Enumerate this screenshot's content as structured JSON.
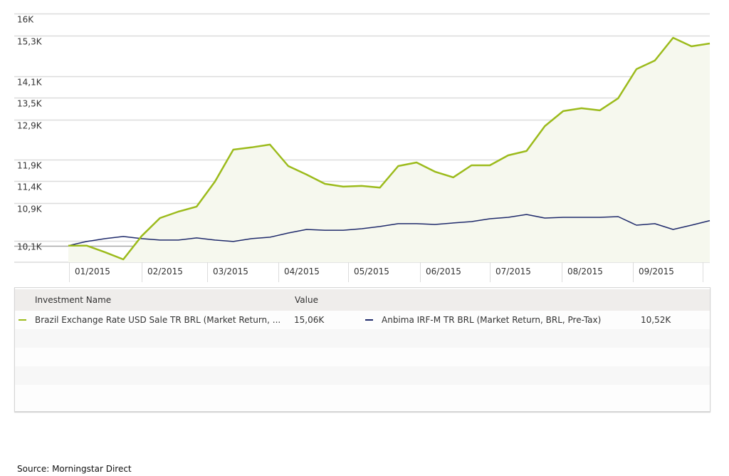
{
  "chart_data": {
    "type": "line",
    "title": "",
    "xlabel": "",
    "ylabel": "",
    "yscale": "log",
    "ylim": [
      9700,
      16000
    ],
    "baseline": 10000,
    "grid": true,
    "yticks": [
      16000,
      15300,
      14100,
      13500,
      12900,
      11900,
      11400,
      10900,
      10100
    ],
    "ytick_labels": [
      "16K",
      "15,3K",
      "14,1K",
      "13,5K",
      "12,9K",
      "11,9K",
      "11,4K",
      "10,9K",
      "10,1K"
    ],
    "xtick_labels": [
      "01/2015",
      "02/2015",
      "03/2015",
      "04/2015",
      "05/2015",
      "06/2015",
      "07/2015",
      "08/2015",
      "09/2015"
    ],
    "x_frequency": "weekly",
    "series": [
      {
        "name": "Brazil Exchange Rate USD Sale TR BRL (Market Return, ...",
        "color": "#9cbb1c",
        "filled": true,
        "values": [
          10000,
          10000,
          9869,
          9725,
          10197,
          10574,
          10712,
          10823,
          11383,
          12146,
          12202,
          12270,
          11750,
          11547,
          11333,
          11269,
          11285,
          11246,
          11750,
          11835,
          11616,
          11482,
          11766,
          11766,
          12007,
          12112,
          12738,
          13132,
          13208,
          13150,
          13477,
          14297,
          14547,
          15235,
          14973,
          15060
        ]
      },
      {
        "name": "Anbima IRF-M TR BRL (Market Return, BRL, Pre-Tax)",
        "color": "#1f2a6b",
        "filled": false,
        "values": [
          10000,
          10084,
          10142,
          10186,
          10142,
          10113,
          10113,
          10157,
          10113,
          10084,
          10142,
          10172,
          10259,
          10333,
          10317,
          10317,
          10348,
          10394,
          10454,
          10454,
          10438,
          10470,
          10499,
          10559,
          10590,
          10651,
          10575,
          10590,
          10590,
          10590,
          10605,
          10423,
          10454,
          10333,
          10423,
          10520
        ]
      }
    ]
  },
  "legend": {
    "header_name": "Investment Name",
    "header_value": "Value",
    "items": [
      {
        "name": "Brazil Exchange Rate USD Sale TR BRL (Market Return, ...",
        "value": "15,06K",
        "color": "#9cbb1c"
      },
      {
        "name": "Anbima IRF-M TR BRL (Market Return, BRL, Pre-Tax)",
        "value": "10,52K",
        "color": "#1f2a6b"
      }
    ]
  },
  "source": "Source: Morningstar Direct"
}
